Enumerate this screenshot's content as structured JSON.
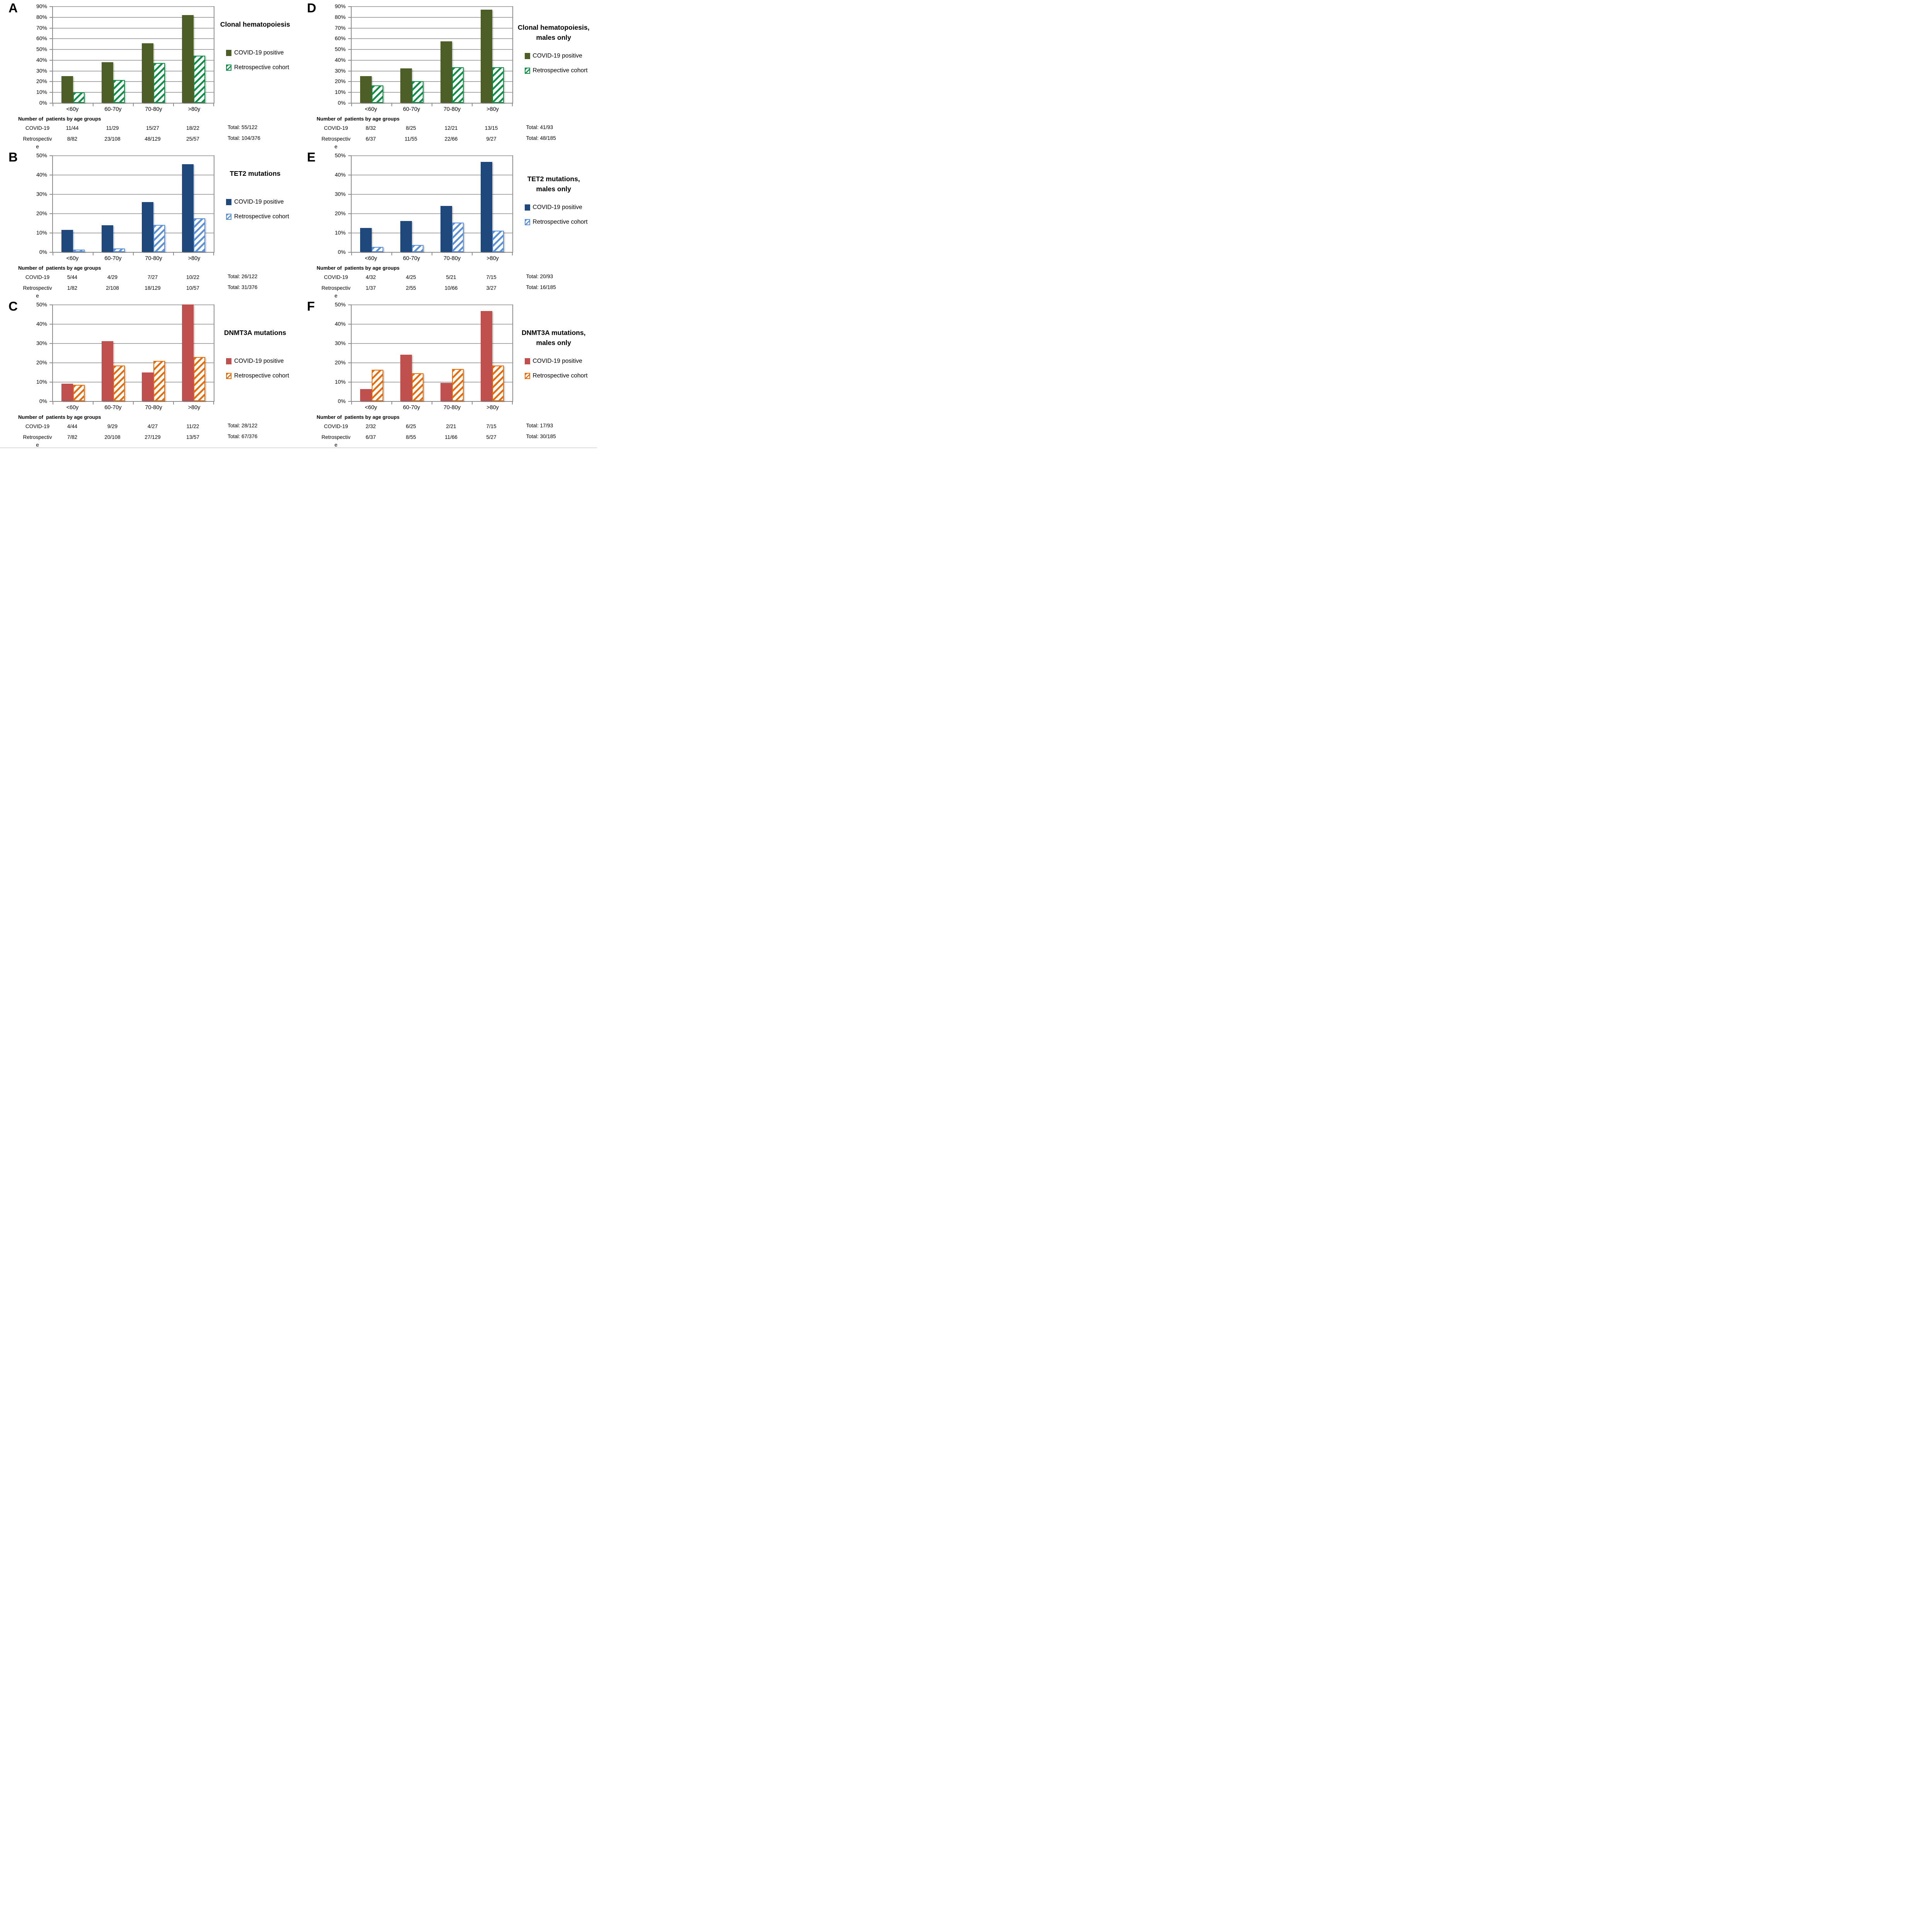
{
  "table_header": "Number of  patients by age groups",
  "chart_data": [
    {
      "id": "panel-A",
      "letter": "A",
      "type": "bar",
      "grid": true,
      "legend_position": "right",
      "title": "Clonal hematopoiesis",
      "title_lines": [
        "Clonal hematopoiesis"
      ],
      "categories": [
        "<60y",
        "60-70y",
        "70-80y",
        ">80y"
      ],
      "ylim": [
        0,
        90
      ],
      "ytick_step": 10,
      "ytick_labels": [
        "90%",
        "80%",
        "70%",
        "60%",
        "50%",
        "40%",
        "30%",
        "20%",
        "10%",
        "0%"
      ],
      "series": [
        {
          "name": "COVID-19 positive",
          "pattern": "solid",
          "color": "#4D5F26",
          "values": [
            25.0,
            37.9,
            55.6,
            81.8
          ],
          "counts": [
            "11/44",
            "11/29",
            "15/27",
            "18/22"
          ],
          "row_label": "COVID-19",
          "total": "Total: 55/122"
        },
        {
          "name": "Retrospective cohort",
          "pattern": "hatch",
          "color": "#0E8F45",
          "values": [
            9.8,
            21.3,
            37.2,
            43.9
          ],
          "counts": [
            "8/82",
            "23/108",
            "48/129",
            "25/57"
          ],
          "row_label": "Retrospective",
          "total": "Total: 104/376"
        }
      ]
    },
    {
      "id": "panel-B",
      "letter": "B",
      "type": "bar",
      "grid": true,
      "legend_position": "right",
      "title": "TET2 mutations",
      "title_lines": [
        "TET2 mutations"
      ],
      "categories": [
        "<60y",
        "60-70y",
        "70-80y",
        ">80y"
      ],
      "ylim": [
        0,
        50
      ],
      "ytick_step": 10,
      "ytick_labels": [
        "50%",
        "40%",
        "30%",
        "20%",
        "10%",
        "0%"
      ],
      "series": [
        {
          "name": "COVID-19 positive",
          "pattern": "solid",
          "color": "#1F497D",
          "values": [
            11.4,
            13.8,
            25.9,
            45.5
          ],
          "counts": [
            "5/44",
            "4/29",
            "7/27",
            "10/22"
          ],
          "row_label": "COVID-19",
          "total": "Total: 26/122"
        },
        {
          "name": "Retrospective cohort",
          "pattern": "hatch",
          "color": "#5B8FD6",
          "values": [
            1.2,
            1.9,
            14.0,
            17.5
          ],
          "counts": [
            "1/82",
            "2/108",
            "18/129",
            "10/57"
          ],
          "row_label": "Retrospective",
          "total": "Total: 31/376"
        }
      ]
    },
    {
      "id": "panel-C",
      "letter": "C",
      "type": "bar",
      "grid": true,
      "legend_position": "right",
      "title": "DNMT3A mutations",
      "title_lines": [
        "DNMT3A mutations"
      ],
      "categories": [
        "<60y",
        "60-70y",
        "70-80y",
        ">80y"
      ],
      "ylim": [
        0,
        50
      ],
      "ytick_step": 10,
      "ytick_labels": [
        "50%",
        "40%",
        "30%",
        "20%",
        "10%",
        "0%"
      ],
      "series": [
        {
          "name": "COVID-19 positive",
          "pattern": "solid",
          "color": "#C0504D",
          "values": [
            9.1,
            31.0,
            14.8,
            50.0
          ],
          "counts": [
            "4/44",
            "9/29",
            "4/27",
            "11/22"
          ],
          "row_label": "COVID-19",
          "total": "Total: 28/122"
        },
        {
          "name": "Retrospective cohort",
          "pattern": "hatch",
          "color": "#E66C0A",
          "values": [
            8.5,
            18.5,
            20.9,
            22.8
          ],
          "counts": [
            "7/82",
            "20/108",
            "27/129",
            "13/57"
          ],
          "row_label": "Retrospective",
          "total": "Total: 67/376"
        }
      ]
    },
    {
      "id": "panel-D",
      "letter": "D",
      "type": "bar",
      "grid": true,
      "legend_position": "right",
      "title": "Clonal hematopoiesis, males only",
      "title_lines": [
        "Clonal hematopoiesis,",
        "males only"
      ],
      "categories": [
        "<60y",
        "60-70y",
        "70-80y",
        ">80y"
      ],
      "ylim": [
        0,
        90
      ],
      "ytick_step": 10,
      "ytick_labels": [
        "90%",
        "80%",
        "70%",
        "60%",
        "50%",
        "40%",
        "30%",
        "20%",
        "10%",
        "0%"
      ],
      "series": [
        {
          "name": "COVID-19 positive",
          "pattern": "solid",
          "color": "#4D5F26",
          "values": [
            25.0,
            32.0,
            57.1,
            86.7
          ],
          "counts": [
            "8/32",
            "8/25",
            "12/21",
            "13/15"
          ],
          "row_label": "COVID-19",
          "total": "Total: 41/93"
        },
        {
          "name": "Retrospective cohort",
          "pattern": "hatch",
          "color": "#0E8F45",
          "values": [
            16.2,
            20.0,
            33.3,
            33.3
          ],
          "counts": [
            "6/37",
            "11/55",
            "22/66",
            "9/27"
          ],
          "row_label": "Retrospective",
          "total": "Total: 48/185"
        }
      ]
    },
    {
      "id": "panel-E",
      "letter": "E",
      "type": "bar",
      "grid": true,
      "legend_position": "right",
      "title": "TET2 mutations, males only",
      "title_lines": [
        "TET2 mutations,",
        "males only"
      ],
      "categories": [
        "<60y",
        "60-70y",
        "70-80y",
        ">80y"
      ],
      "ylim": [
        0,
        50
      ],
      "ytick_step": 10,
      "ytick_labels": [
        "50%",
        "40%",
        "30%",
        "20%",
        "10%",
        "0%"
      ],
      "series": [
        {
          "name": "COVID-19 positive",
          "pattern": "solid",
          "color": "#1F497D",
          "values": [
            12.5,
            16.0,
            23.8,
            46.7
          ],
          "counts": [
            "4/32",
            "4/25",
            "5/21",
            "7/15"
          ],
          "row_label": "COVID-19",
          "total": "Total: 20/93"
        },
        {
          "name": "Retrospective cohort",
          "pattern": "hatch",
          "color": "#5B8FD6",
          "values": [
            2.7,
            3.6,
            15.2,
            11.1
          ],
          "counts": [
            "1/37",
            "2/55",
            "10/66",
            "3/27"
          ],
          "row_label": "Retrospective",
          "total": "Total: 16/185"
        }
      ]
    },
    {
      "id": "panel-F",
      "letter": "F",
      "type": "bar",
      "grid": true,
      "legend_position": "right",
      "title": "DNMT3A mutations, males only",
      "title_lines": [
        "DNMT3A mutations,",
        "males only"
      ],
      "categories": [
        "<60y",
        "60-70y",
        "70-80y",
        ">80y"
      ],
      "ylim": [
        0,
        50
      ],
      "ytick_step": 10,
      "ytick_labels": [
        "50%",
        "40%",
        "30%",
        "20%",
        "10%",
        "0%"
      ],
      "series": [
        {
          "name": "COVID-19 positive",
          "pattern": "solid",
          "color": "#C0504D",
          "values": [
            6.3,
            24.0,
            9.5,
            46.7
          ],
          "counts": [
            "2/32",
            "6/25",
            "2/21",
            "7/15"
          ],
          "row_label": "COVID-19",
          "total": "Total: 17/93"
        },
        {
          "name": "Retrospective cohort",
          "pattern": "hatch",
          "color": "#E66C0A",
          "values": [
            16.2,
            14.5,
            16.7,
            18.5
          ],
          "counts": [
            "6/37",
            "8/55",
            "11/66",
            "5/27"
          ],
          "row_label": "Retrospective",
          "total": "Total: 30/185"
        }
      ]
    }
  ]
}
